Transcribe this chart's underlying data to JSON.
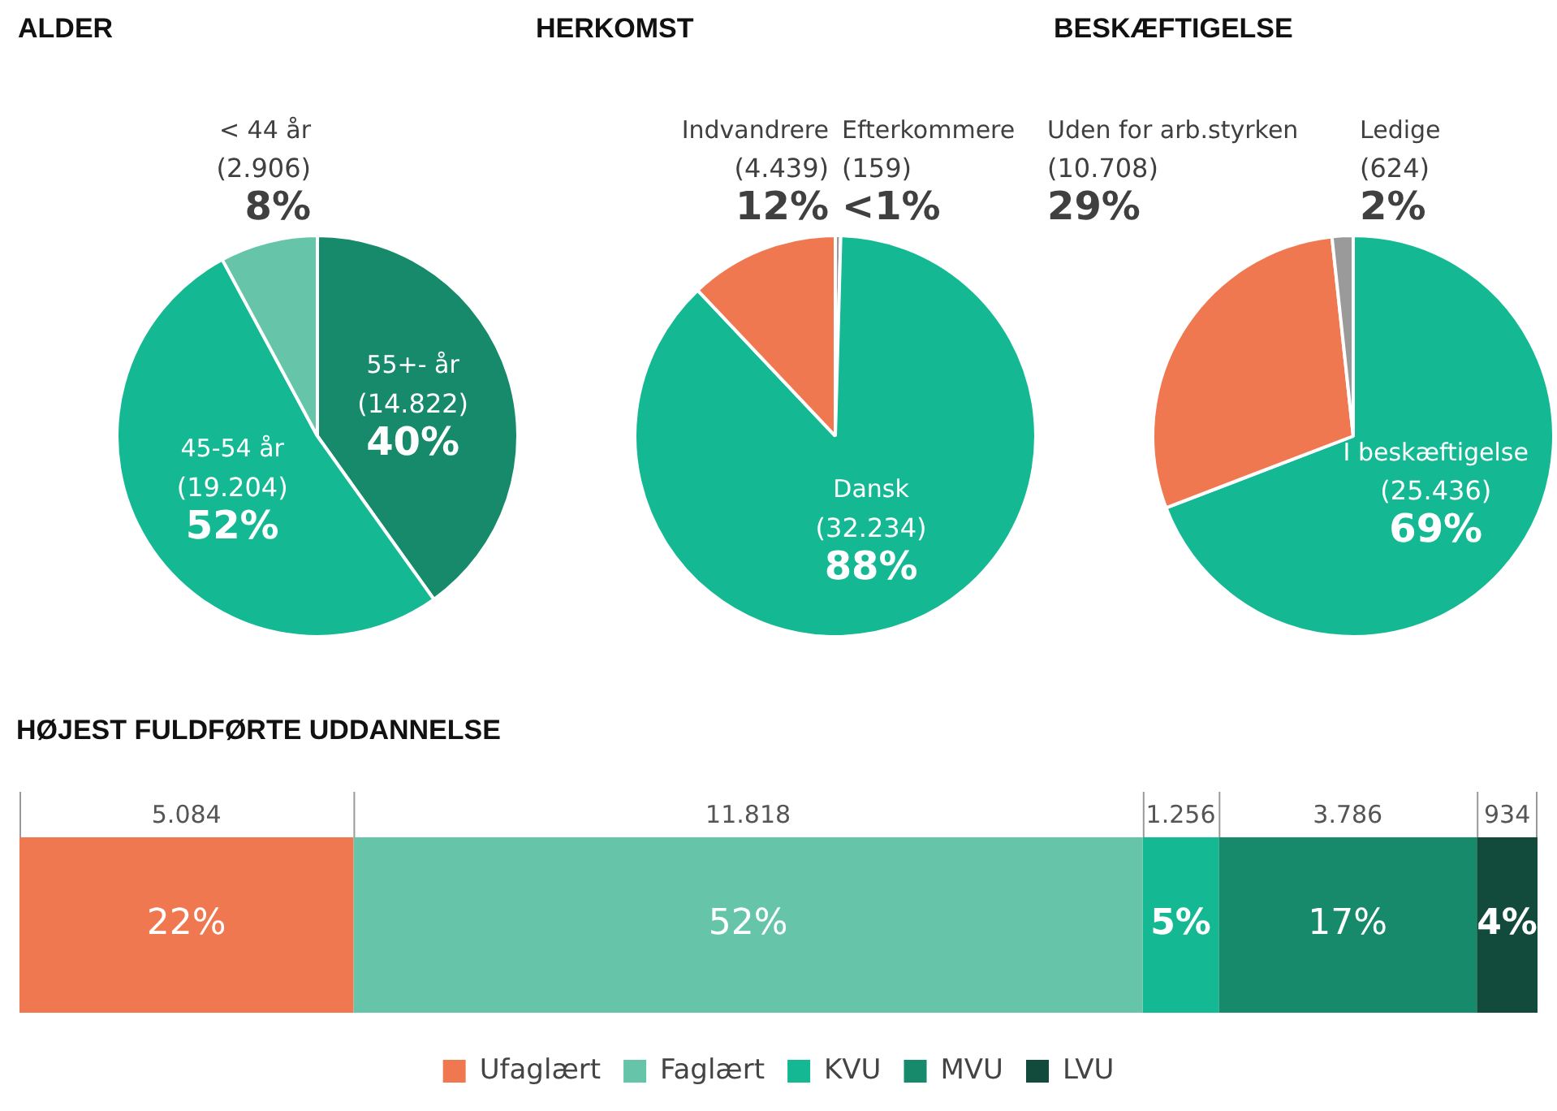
{
  "chart_data": [
    {
      "type": "pie",
      "title": "ALDER",
      "categories": [
        "55+- år",
        "45-54 år",
        "< 44 år"
      ],
      "values": [
        14822,
        19204,
        2906
      ],
      "colors": [
        "#178a6c",
        "#14b994",
        "#66c5a9"
      ],
      "value_labels": [
        "(14.822)\n40%",
        "(19.204)\n52%",
        "(2.906)\n8%"
      ],
      "legend": false
    },
    {
      "type": "pie",
      "title": "HERKOMST",
      "categories": [
        "Efterkommere",
        "Dansk",
        "Indvandrere"
      ],
      "values": [
        159,
        32234,
        4439
      ],
      "colors": [
        "#9a9a9a",
        "#14b994",
        "#f07850"
      ],
      "value_labels": [
        "(159)\n<1%",
        "(32.234)\n88%",
        "(4.439)\n12%"
      ],
      "legend": false
    },
    {
      "type": "pie",
      "title": "BESKÆFTIGELSE",
      "categories": [
        "I beskæftigelse",
        "Uden for arb.styrken",
        "Ledige"
      ],
      "values": [
        25436,
        10708,
        624
      ],
      "colors": [
        "#14b994",
        "#f07850",
        "#9a9a9a"
      ],
      "value_labels": [
        "(25.436)\n69%",
        "(10.708)\n29%",
        "(624)\n2%"
      ],
      "legend": false
    },
    {
      "type": "bar",
      "title": "HØJEST FULDFØRTE UDDANNELSE",
      "orientation": "horizontal",
      "stacked": true,
      "categories": [
        null
      ],
      "xlim": [
        0,
        100
      ],
      "tick_labels": false,
      "grid": false,
      "legend": "bottom",
      "annotations": [
        "5.084",
        "11.818",
        "1.256",
        "3.786",
        "934"
      ],
      "series": [
        {
          "name": "Ufaglært",
          "color": "#f07850",
          "values": [
            22
          ],
          "value_labels": [
            "22%"
          ]
        },
        {
          "name": "Faglært",
          "color": "#66c5a9",
          "values": [
            52
          ],
          "value_labels": [
            "52%"
          ]
        },
        {
          "name": "KVU",
          "color": "#14b994",
          "values": [
            5
          ],
          "value_labels": [
            "5%"
          ]
        },
        {
          "name": "MVU",
          "color": "#178a6c",
          "values": [
            17
          ],
          "value_labels": [
            "17%"
          ]
        },
        {
          "name": "LVU",
          "color": "#124a3b",
          "values": [
            4
          ],
          "value_labels": [
            "4%"
          ]
        }
      ]
    }
  ]
}
